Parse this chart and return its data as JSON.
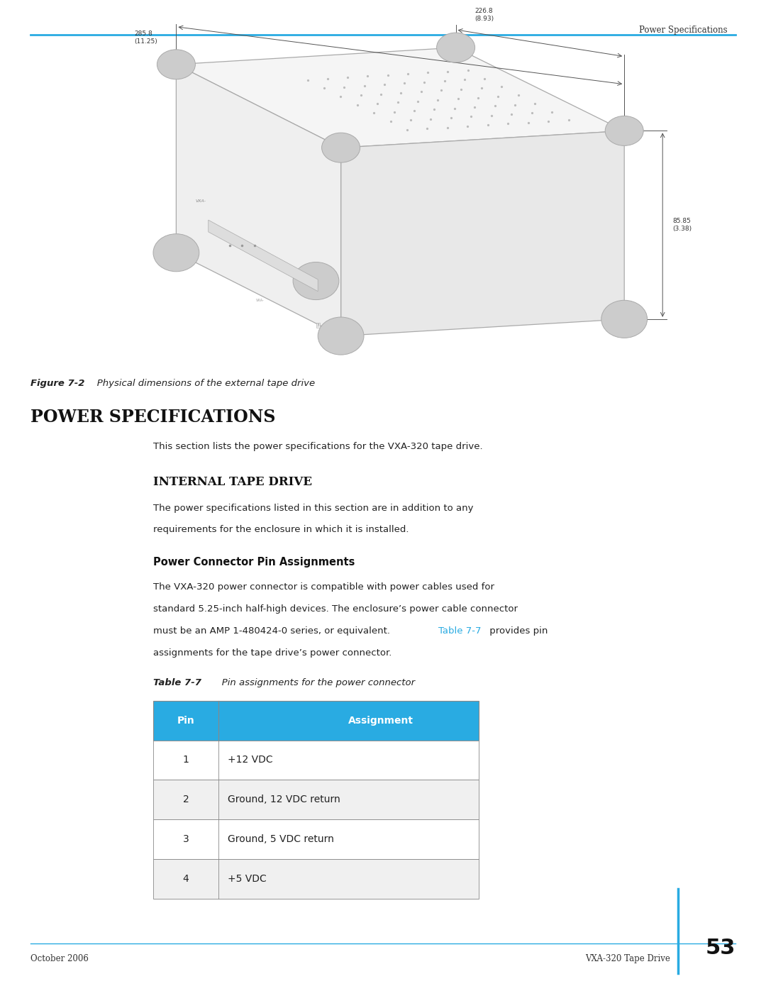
{
  "page_width": 10.8,
  "page_height": 13.97,
  "bg_color": "#ffffff",
  "header_text": "Power Specifications",
  "header_color": "#333333",
  "header_line_color": "#29abe2",
  "footer_left": "October 2006",
  "footer_right": "VXA-320 Tape Drive",
  "footer_page": "53",
  "footer_line_color": "#29abe2",
  "footer_vline_color": "#29abe2",
  "figure_caption_bold": "Figure 7-2",
  "figure_caption_rest": "   Physical dimensions of the external tape drive",
  "section_title": "Power Specifications",
  "subsection_title": "Internal Tape Drive",
  "subsubsection_title": "Power Connector Pin Assignments",
  "intro_text": "This section lists the power specifications for the VXA-320 tape drive.",
  "para1_line1": "The power specifications listed in this section are in addition to any",
  "para1_line2": "requirements for the enclosure in which it is installed.",
  "para2_line1": "The VXA-320 power connector is compatible with power cables used for",
  "para2_line2": "standard 5.25-inch half-high devices. The enclosure’s power cable connector",
  "para2_line3a": "must be an AMP 1-480424-0 series, or equivalent. ",
  "para2_link": "Table 7-7",
  "para2_line3b": " provides pin",
  "para2_line4": "assignments for the tape drive’s power connector.",
  "link_color": "#29abe2",
  "table_caption_bold": "Table 7-7",
  "table_caption_rest": "   Pin assignments for the power connector",
  "table_header_bg": "#29abe2",
  "table_header_color": "#ffffff",
  "table_row_bg1": "#ffffff",
  "table_row_bg2": "#f0f0f0",
  "table_border_color": "#888888",
  "table_col_headers": [
    "Pin",
    "Assignment"
  ],
  "table_rows": [
    [
      "1",
      "+12 VDC"
    ],
    [
      "2",
      "Ground, 12 VDC return"
    ],
    [
      "3",
      "Ground, 5 VDC return"
    ],
    [
      "4",
      "+5 VDC"
    ]
  ],
  "dim_226": "226.8\n(8.93)",
  "dim_285": "285.8\n(11.25)",
  "dim_85": "85.85\n(3.38)"
}
